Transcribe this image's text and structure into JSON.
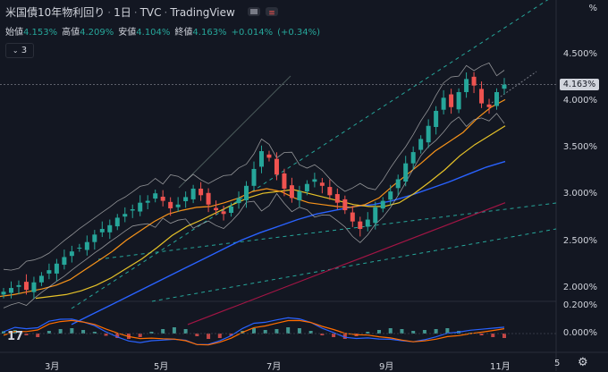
{
  "header": {
    "symbol": "米国債10年物利回り",
    "interval": "1日",
    "exchange": "TVC",
    "brand": "TradingView"
  },
  "ohlc": {
    "open_label": "始値",
    "open": "4.153%",
    "high_label": "高値",
    "high": "4.209%",
    "low_label": "安値",
    "low": "4.104%",
    "close_label": "終値",
    "close": "4.163%",
    "change": "+0.014%",
    "change_pct": "(+0.34%)"
  },
  "indicator_toggle": "3",
  "logo_text": "17",
  "price_tag": "4.163%",
  "colors": {
    "background": "#131722",
    "up": "#26a69a",
    "down": "#ef5350",
    "ma_orange": "#f7931a",
    "ma_yellow": "#e6c229",
    "ma_blue": "#2962ff",
    "ma_red": "#a31545",
    "bollinger": "#c9c9c9",
    "trend_dashed": "#26a69a"
  },
  "chart_data": {
    "type": "candlestick",
    "y_axis": {
      "ticks": [
        "4.500%",
        "4.000%",
        "3.500%",
        "3.000%",
        "2.500%",
        "2.000%"
      ],
      "range": [
        1.9,
        5.1
      ]
    },
    "x_axis": {
      "ticks": [
        "3月",
        "5月",
        "7月",
        "9月",
        "11月",
        "5"
      ]
    },
    "candles_close": [
      1.95,
      1.99,
      2.02,
      1.97,
      2.05,
      2.12,
      2.18,
      2.25,
      2.32,
      2.38,
      2.42,
      2.48,
      2.56,
      2.62,
      2.66,
      2.74,
      2.78,
      2.83,
      2.9,
      2.92,
      3.0,
      2.92,
      2.84,
      2.88,
      2.96,
      3.05,
      2.98,
      2.88,
      2.82,
      2.78,
      2.86,
      2.95,
      3.08,
      3.26,
      3.45,
      3.38,
      3.2,
      3.05,
      2.95,
      3.02,
      3.1,
      3.15,
      3.08,
      2.98,
      2.9,
      2.82,
      2.7,
      2.62,
      2.72,
      2.85,
      2.92,
      3.02,
      3.15,
      3.32,
      3.44,
      3.58,
      3.72,
      3.88,
      4.02,
      3.92,
      4.08,
      4.22,
      4.15,
      3.96,
      3.92,
      4.08,
      4.16
    ],
    "ma_orange": [
      1.9,
      1.92,
      1.95,
      1.98,
      2.02,
      2.08,
      2.18,
      2.28,
      2.38,
      2.5,
      2.6,
      2.7,
      2.78,
      2.82,
      2.85,
      2.86,
      2.9,
      2.95,
      3.02,
      3.05,
      3.02,
      2.95,
      2.9,
      2.88,
      2.86,
      2.85,
      2.88,
      2.95,
      3.08,
      3.2,
      3.32,
      3.45,
      3.55,
      3.65,
      3.8,
      3.92,
      4.0
    ],
    "ma_yellow": [
      1.88,
      1.9,
      1.92,
      1.96,
      2.02,
      2.1,
      2.2,
      2.3,
      2.42,
      2.55,
      2.65,
      2.72,
      2.8,
      2.88,
      2.95,
      3.0,
      3.02,
      3.04,
      3.0,
      2.96,
      2.92,
      2.88,
      2.86,
      2.86,
      2.9,
      3.0,
      3.12,
      3.25,
      3.4,
      3.52,
      3.62,
      3.72
    ],
    "ma_blue": [
      1.6,
      1.7,
      1.8,
      1.9,
      2.0,
      2.1,
      2.2,
      2.3,
      2.4,
      2.5,
      2.58,
      2.65,
      2.72,
      2.78,
      2.82,
      2.86,
      2.88,
      2.92,
      2.98,
      3.05,
      3.12,
      3.2,
      3.28,
      3.34
    ],
    "ma_red": [
      1.6,
      1.7,
      1.8,
      1.9,
      2.0,
      2.1,
      2.2,
      2.3,
      2.4,
      2.5,
      2.6,
      2.7,
      2.8,
      2.9
    ],
    "oscillator": {
      "ticks": [
        "0.200%",
        "0.000%"
      ],
      "histogram": [
        0.05,
        0.08,
        -0.04,
        -0.08,
        0.06,
        0.1,
        0.12,
        0.08,
        0.04,
        -0.05,
        -0.1,
        -0.12,
        -0.08,
        0.04,
        0.1,
        0.14,
        0.1,
        -0.06,
        -0.12,
        -0.1,
        -0.05,
        0.06,
        0.12,
        0.08,
        0.1,
        0.14,
        0.12,
        0.06,
        -0.04,
        -0.08,
        -0.12,
        -0.06,
        0.04,
        0.08,
        0.12,
        0.1,
        0.06,
        0.08,
        0.1,
        0.12,
        0.06,
        0.02,
        -0.04,
        -0.08,
        -0.1
      ]
    }
  }
}
